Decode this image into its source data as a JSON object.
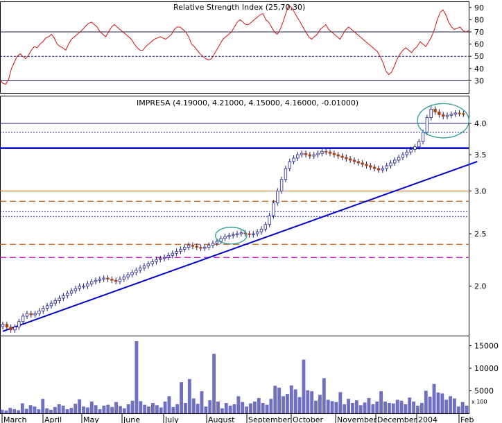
{
  "chart_data": [
    {
      "type": "line",
      "title": "Relative Strength Index (25,70,30)",
      "ylim": [
        20,
        95
      ],
      "y_ticks": [
        90,
        80,
        70,
        60,
        50,
        40,
        30
      ],
      "reference_levels": [
        70,
        50,
        30
      ],
      "series": [
        {
          "color": "#d01010",
          "values": [
            30,
            28,
            27,
            31,
            40,
            45,
            50,
            52,
            50,
            48,
            51,
            55,
            58,
            57,
            60,
            62,
            65,
            66,
            68,
            65,
            60,
            58,
            57,
            55,
            60,
            64,
            66,
            68,
            70,
            72,
            75,
            77,
            78,
            76,
            74,
            70,
            68,
            66,
            70,
            74,
            76,
            74,
            72,
            70,
            68,
            66,
            64,
            60,
            57,
            55,
            55,
            58,
            60,
            62,
            64,
            65,
            66,
            65,
            64,
            66,
            68,
            72,
            74,
            74,
            72,
            70,
            66,
            60,
            58,
            55,
            52,
            50,
            48,
            47,
            48,
            52,
            56,
            60,
            64,
            66,
            68,
            70,
            74,
            78,
            80,
            78,
            76,
            76,
            78,
            80,
            82,
            84,
            85,
            80,
            78,
            74,
            70,
            68,
            72,
            78,
            85,
            92,
            90,
            86,
            82,
            78,
            74,
            70,
            66,
            64,
            66,
            68,
            72,
            74,
            76,
            72,
            70,
            68,
            66,
            64,
            68,
            72,
            74,
            72,
            70,
            68,
            66,
            64,
            62,
            60,
            58,
            56,
            54,
            50,
            45,
            38,
            35,
            37,
            42,
            48,
            52,
            55,
            57,
            55,
            53,
            56,
            58,
            62,
            60,
            58,
            62,
            66,
            72,
            80,
            86,
            88,
            84,
            78,
            74,
            72,
            73,
            74,
            71,
            70,
            71
          ]
        }
      ]
    },
    {
      "type": "candlestick",
      "title": "IMPRESA (4.19000, 4.21000, 4.15000, 4.16000, -0.01000)",
      "scale": "log",
      "ylim": [
        1.62,
        4.5
      ],
      "y_ticks": [
        "4.0",
        "3.5",
        "3.0",
        "2.5",
        "2.0"
      ],
      "x_ticks": [
        "March",
        "April",
        "May",
        "June",
        "July",
        "August",
        "September",
        "October",
        "November",
        "December",
        "2004",
        "Feb"
      ],
      "close": [
        1.7,
        1.68,
        1.66,
        1.68,
        1.72,
        1.76,
        1.78,
        1.77,
        1.78,
        1.8,
        1.82,
        1.84,
        1.86,
        1.88,
        1.9,
        1.92,
        1.94,
        1.96,
        1.98,
        2.0,
        2.0,
        2.02,
        2.04,
        2.05,
        2.06,
        2.07,
        2.06,
        2.05,
        2.04,
        2.06,
        2.08,
        2.1,
        2.12,
        2.14,
        2.16,
        2.18,
        2.2,
        2.22,
        2.24,
        2.25,
        2.26,
        2.28,
        2.3,
        2.32,
        2.34,
        2.36,
        2.38,
        2.37,
        2.36,
        2.35,
        2.36,
        2.38,
        2.4,
        2.42,
        2.45,
        2.47,
        2.48,
        2.49,
        2.5,
        2.51,
        2.5,
        2.49,
        2.5,
        2.52,
        2.55,
        2.6,
        2.7,
        2.85,
        3.0,
        3.15,
        3.3,
        3.4,
        3.45,
        3.5,
        3.52,
        3.5,
        3.48,
        3.5,
        3.52,
        3.55,
        3.54,
        3.52,
        3.5,
        3.48,
        3.46,
        3.44,
        3.42,
        3.4,
        3.38,
        3.36,
        3.34,
        3.32,
        3.3,
        3.28,
        3.3,
        3.34,
        3.38,
        3.42,
        3.46,
        3.5,
        3.54,
        3.58,
        3.62,
        3.7,
        3.85,
        4.1,
        4.25,
        4.2,
        4.15,
        4.12,
        4.14,
        4.16,
        4.18,
        4.17,
        4.16
      ],
      "horizontal_lines": [
        {
          "value": 4.0,
          "color": "#1a1a8c",
          "style": "thin"
        },
        {
          "value": 3.85,
          "color": "#1a1a8c",
          "style": "dotted"
        },
        {
          "value": 3.6,
          "color": "#0000cc",
          "style": "thick"
        },
        {
          "value": 3.0,
          "color": "#d2691e",
          "style": "solid"
        },
        {
          "value": 2.87,
          "color": "#d2691e",
          "style": "dashed"
        },
        {
          "value": 2.75,
          "color": "#1a1a8c",
          "style": "dotted"
        },
        {
          "value": 2.69,
          "color": "#1a1a8c",
          "style": "dotted"
        },
        {
          "value": 2.39,
          "color": "#d2691e",
          "style": "dashed"
        },
        {
          "value": 2.26,
          "color": "#cc00cc",
          "style": "dashed"
        }
      ],
      "trendline": {
        "from": [
          0,
          1.65
        ],
        "to": [
          114,
          3.4
        ],
        "color": "#0000cc"
      }
    },
    {
      "type": "bar",
      "title": "",
      "ylim": [
        0,
        16000
      ],
      "y_ticks": [
        "15000",
        "10000",
        "5000"
      ],
      "y_multiplier_label": "x 100",
      "color": "#7070c0",
      "values": [
        800,
        600,
        1200,
        900,
        700,
        2200,
        1000,
        1800,
        1500,
        900,
        3200,
        1100,
        800,
        1400,
        2000,
        1700,
        900,
        1200,
        2100,
        3100,
        1500,
        1300,
        2600,
        1800,
        900,
        1700,
        1900,
        1400,
        2500,
        1600,
        1100,
        2000,
        2800,
        16000,
        2700,
        1900,
        1500,
        2300,
        1800,
        1300,
        2600,
        3800,
        1400,
        2000,
        6900,
        2300,
        7600,
        3300,
        2100,
        4900,
        1500,
        2900,
        13200,
        2600,
        1100,
        2300,
        1700,
        2000,
        3800,
        2500,
        1500,
        2200,
        2600,
        3400,
        2300,
        1900,
        3200,
        6100,
        5700,
        3800,
        4300,
        6200,
        5300,
        3600,
        11900,
        5100,
        4900,
        2800,
        4100,
        7800,
        3000,
        2700,
        2500,
        4700,
        2000,
        3200,
        2300,
        2900,
        1800,
        2400,
        3400,
        2000,
        2600,
        4900,
        2600,
        2300,
        2200,
        3000,
        2800,
        2000,
        3500,
        2600,
        1700,
        2300,
        5000,
        3700,
        6500,
        4600,
        4400,
        3000,
        3800,
        3300,
        1500,
        2500,
        1700
      ]
    }
  ]
}
